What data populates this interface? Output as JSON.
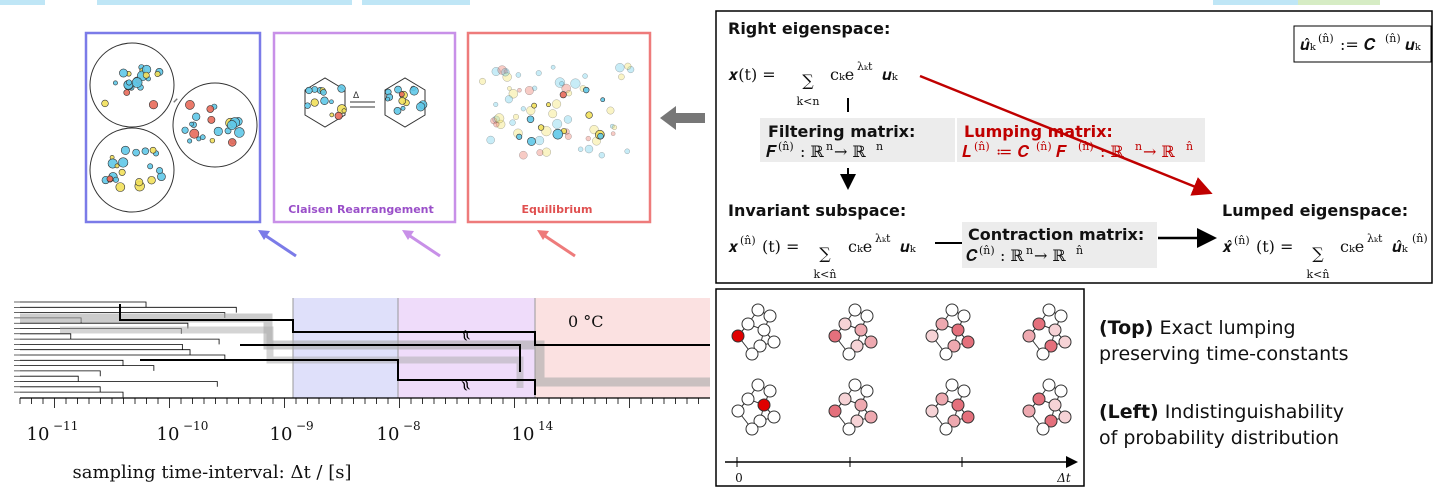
{
  "panels": {
    "claisen": "Claisen Rearrangement",
    "equilibrium": "Equilibrium"
  },
  "dendrogram": {
    "temperature": "0 °C",
    "xticks": [
      {
        "base": "10",
        "exp": "−11"
      },
      {
        "base": "10",
        "exp": "−10"
      },
      {
        "base": "10",
        "exp": "−9"
      },
      {
        "base": "10",
        "exp": "−8"
      },
      {
        "base": "10",
        "exp": "14"
      }
    ],
    "xlabel": "sampling time-interval:  Δt / [s]"
  },
  "eigen": {
    "right_title": "Right eigenspace:",
    "right_eq": [
      "𝒙(t) = ",
      "∑",
      "k<n",
      "cₖe",
      "λₖt",
      "𝒖ₖ"
    ],
    "filter_title": "Filtering matrix:",
    "filter_eq": [
      "𝑭",
      "(n̂)",
      ": ℝ",
      "n",
      " → ℝ",
      "n"
    ],
    "lump_title": "Lumping matrix:",
    "lump_eq": [
      "𝑳",
      "(n̂)",
      " ≔ 𝑪",
      "(n̂)",
      " 𝑭",
      "(n̂)",
      " : ℝ",
      "n",
      " → ℝ",
      "n̂"
    ],
    "inv_title": "Invariant subspace:",
    "inv_eq": [
      "𝒙",
      "(n̂)",
      "(t) = ",
      "∑",
      "k<n̂",
      "cₖe",
      "λₖt",
      "𝒖ₖ"
    ],
    "contr_title": "Contraction matrix:",
    "contr_eq": [
      "𝑪",
      "(n̂)",
      ": ℝ",
      "n",
      " → ℝ",
      "n̂"
    ],
    "lumped_title": "Lumped eigenspace:",
    "lumped_eq": [
      "𝒙̂",
      "(n̂)",
      "(t) = ",
      "∑",
      "k<n̂",
      "cₖe",
      "λₖt",
      "𝒖̂ₖ",
      "(n̂)"
    ],
    "def_eq": [
      "𝒖̂ₖ",
      "(n̂)",
      ":= 𝑪",
      "(n̂)",
      "𝒖ₖ"
    ]
  },
  "timeline": {
    "start": "0",
    "end": "Δt"
  },
  "captions": [
    {
      "tag": "(Top)",
      "lines": [
        " Exact lumping",
        "preserving time-constants"
      ]
    },
    {
      "tag": "(Left)",
      "lines": [
        " Indistinguishability",
        "of probability distribution"
      ]
    }
  ]
}
